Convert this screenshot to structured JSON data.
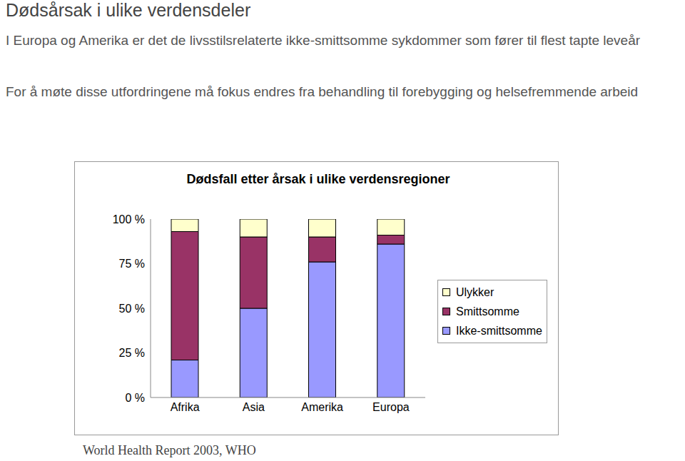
{
  "title": "Dødsårsak i ulike verdensdeler",
  "paragraphs": [
    "I Europa og Amerika er det de livsstilsrelaterte ikke-smittsomme sykdommer som fører til flest tapte leveår",
    "For å møte disse utfordringene må fokus endres fra behandling til forebygging og helsefremmende arbeid"
  ],
  "source": "World Health Report 2003, WHO",
  "chart_data": {
    "type": "bar",
    "title": "Dødsfall etter årsak i ulike verdensregioner",
    "categories": [
      "Afrika",
      "Asia",
      "Amerika",
      "Europa"
    ],
    "series": [
      {
        "name": "Ikke-smittsomme",
        "color": "#9999ff",
        "values": [
          21,
          50,
          76,
          86
        ]
      },
      {
        "name": "Smittsomme",
        "color": "#993366",
        "values": [
          72,
          40,
          14,
          5
        ]
      },
      {
        "name": "Ulykker",
        "color": "#ffffcc",
        "values": [
          7,
          10,
          10,
          9
        ]
      }
    ],
    "stacked": true,
    "ylim": [
      0,
      100
    ],
    "yticks": [
      {
        "value": 0,
        "label": "0 %"
      },
      {
        "value": 25,
        "label": "25 %"
      },
      {
        "value": 50,
        "label": "50 %"
      },
      {
        "value": 75,
        "label": "75 %"
      },
      {
        "value": 100,
        "label": "100 %"
      }
    ],
    "grid": false,
    "legend": "right"
  }
}
